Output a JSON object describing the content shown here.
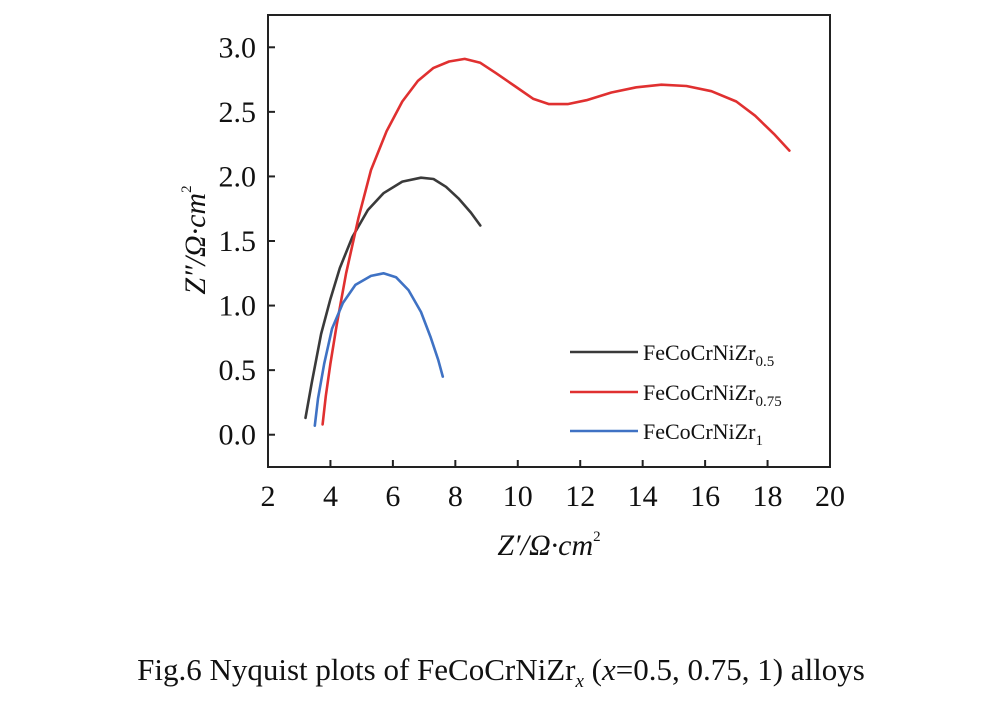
{
  "chart_data": {
    "type": "line",
    "xlim": [
      2,
      20
    ],
    "ylim": [
      -0.25,
      3.25
    ],
    "x_ticks": [
      2,
      4,
      6,
      8,
      10,
      12,
      14,
      16,
      18,
      20
    ],
    "y_ticks": [
      0.0,
      0.5,
      1.0,
      1.5,
      2.0,
      2.5,
      3.0
    ],
    "x_tick_labels": [
      "2",
      "4",
      "6",
      "8",
      "10",
      "12",
      "14",
      "16",
      "18",
      "20"
    ],
    "y_tick_labels": [
      "0.0",
      "0.5",
      "1.0",
      "1.5",
      "2.0",
      "2.5",
      "3.0"
    ],
    "xlabel": {
      "main": "Z′/Ω·cm",
      "sup": "2"
    },
    "ylabel": {
      "main": "Z″/Ω·cm",
      "sup": "2"
    },
    "grid": false,
    "legend_position": "bottom-right",
    "series": [
      {
        "name": "FeCoCrNiZr",
        "name_sub": "0.5",
        "color": "#3a3a3a",
        "points": [
          [
            3.2,
            0.13
          ],
          [
            3.4,
            0.4
          ],
          [
            3.7,
            0.78
          ],
          [
            4.0,
            1.05
          ],
          [
            4.3,
            1.29
          ],
          [
            4.7,
            1.53
          ],
          [
            5.2,
            1.74
          ],
          [
            5.7,
            1.87
          ],
          [
            6.3,
            1.96
          ],
          [
            6.9,
            1.99
          ],
          [
            7.3,
            1.98
          ],
          [
            7.7,
            1.92
          ],
          [
            8.1,
            1.83
          ],
          [
            8.5,
            1.72
          ],
          [
            8.8,
            1.62
          ]
        ]
      },
      {
        "name": "FeCoCrNiZr",
        "name_sub": "0.75",
        "color": "#e03030",
        "points": [
          [
            3.75,
            0.08
          ],
          [
            3.85,
            0.3
          ],
          [
            4.0,
            0.55
          ],
          [
            4.2,
            0.85
          ],
          [
            4.5,
            1.25
          ],
          [
            4.9,
            1.68
          ],
          [
            5.3,
            2.05
          ],
          [
            5.8,
            2.35
          ],
          [
            6.3,
            2.58
          ],
          [
            6.8,
            2.74
          ],
          [
            7.3,
            2.84
          ],
          [
            7.8,
            2.89
          ],
          [
            8.3,
            2.91
          ],
          [
            8.8,
            2.88
          ],
          [
            9.3,
            2.8
          ],
          [
            9.9,
            2.7
          ],
          [
            10.5,
            2.6
          ],
          [
            11.0,
            2.56
          ],
          [
            11.6,
            2.56
          ],
          [
            12.2,
            2.59
          ],
          [
            13.0,
            2.65
          ],
          [
            13.8,
            2.69
          ],
          [
            14.6,
            2.71
          ],
          [
            15.4,
            2.7
          ],
          [
            16.2,
            2.66
          ],
          [
            17.0,
            2.58
          ],
          [
            17.6,
            2.47
          ],
          [
            18.2,
            2.33
          ],
          [
            18.7,
            2.2
          ]
        ]
      },
      {
        "name": "FeCoCrNiZr",
        "name_sub": "1",
        "color": "#3f72c4",
        "points": [
          [
            3.5,
            0.07
          ],
          [
            3.6,
            0.28
          ],
          [
            3.8,
            0.55
          ],
          [
            4.05,
            0.82
          ],
          [
            4.4,
            1.02
          ],
          [
            4.8,
            1.16
          ],
          [
            5.3,
            1.23
          ],
          [
            5.7,
            1.25
          ],
          [
            6.1,
            1.22
          ],
          [
            6.5,
            1.12
          ],
          [
            6.9,
            0.95
          ],
          [
            7.2,
            0.76
          ],
          [
            7.45,
            0.58
          ],
          [
            7.6,
            0.45
          ]
        ]
      }
    ]
  },
  "caption": {
    "prefix": "Fig.6    Nyquist plots of FeCoCrNiZr",
    "sub": "x",
    "open": " (",
    "var": "x",
    "rest": "=0.5, 0.75, 1) alloys"
  }
}
